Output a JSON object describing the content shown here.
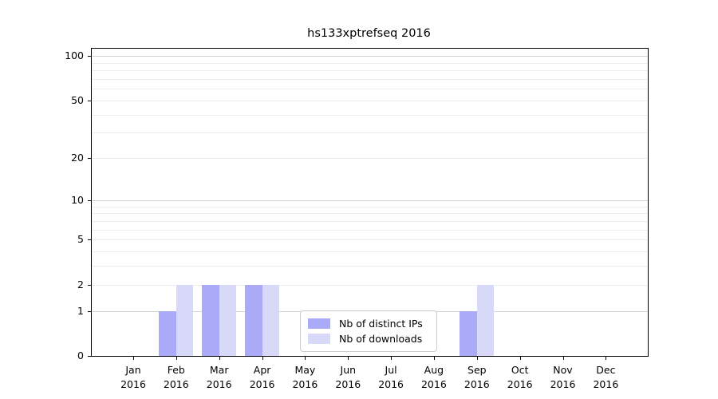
{
  "title": "hs133xptrefseq 2016",
  "chart_data": {
    "type": "bar",
    "title": "hs133xptrefseq 2016",
    "categories": [
      "Jan",
      "Feb",
      "Mar",
      "Apr",
      "May",
      "Jun",
      "Jul",
      "Aug",
      "Sep",
      "Oct",
      "Nov",
      "Dec"
    ],
    "category_year": "2016",
    "series": [
      {
        "name": "Nb of distinct IPs",
        "color": "#aaaaf8",
        "values": [
          0,
          1,
          2,
          2,
          0,
          0,
          0,
          0,
          1,
          0,
          0,
          0
        ]
      },
      {
        "name": "Nb of downloads",
        "color": "#d8d8f8",
        "values": [
          0,
          2,
          2,
          2,
          0,
          0,
          0,
          0,
          2,
          0,
          0,
          0
        ]
      }
    ],
    "xlabel": "",
    "ylabel": "",
    "yscale": "log1p",
    "ylim": [
      0,
      112
    ],
    "yticks": [
      0,
      1,
      2,
      5,
      10,
      20,
      50,
      100
    ],
    "grid": {
      "orientation": "horizontal",
      "major_values": [
        1,
        10,
        100
      ],
      "minor_values": [
        2,
        3,
        4,
        5,
        6,
        7,
        8,
        9,
        20,
        30,
        40,
        50,
        60,
        70,
        80,
        90
      ],
      "major_color": "#d4d4d4",
      "minor_color": "#ededed"
    },
    "legend": {
      "position": "inside lower center",
      "entries": [
        "Nb of distinct IPs",
        "Nb of downloads"
      ]
    },
    "axis_color": "#000000",
    "background_color": "#ffffff"
  }
}
